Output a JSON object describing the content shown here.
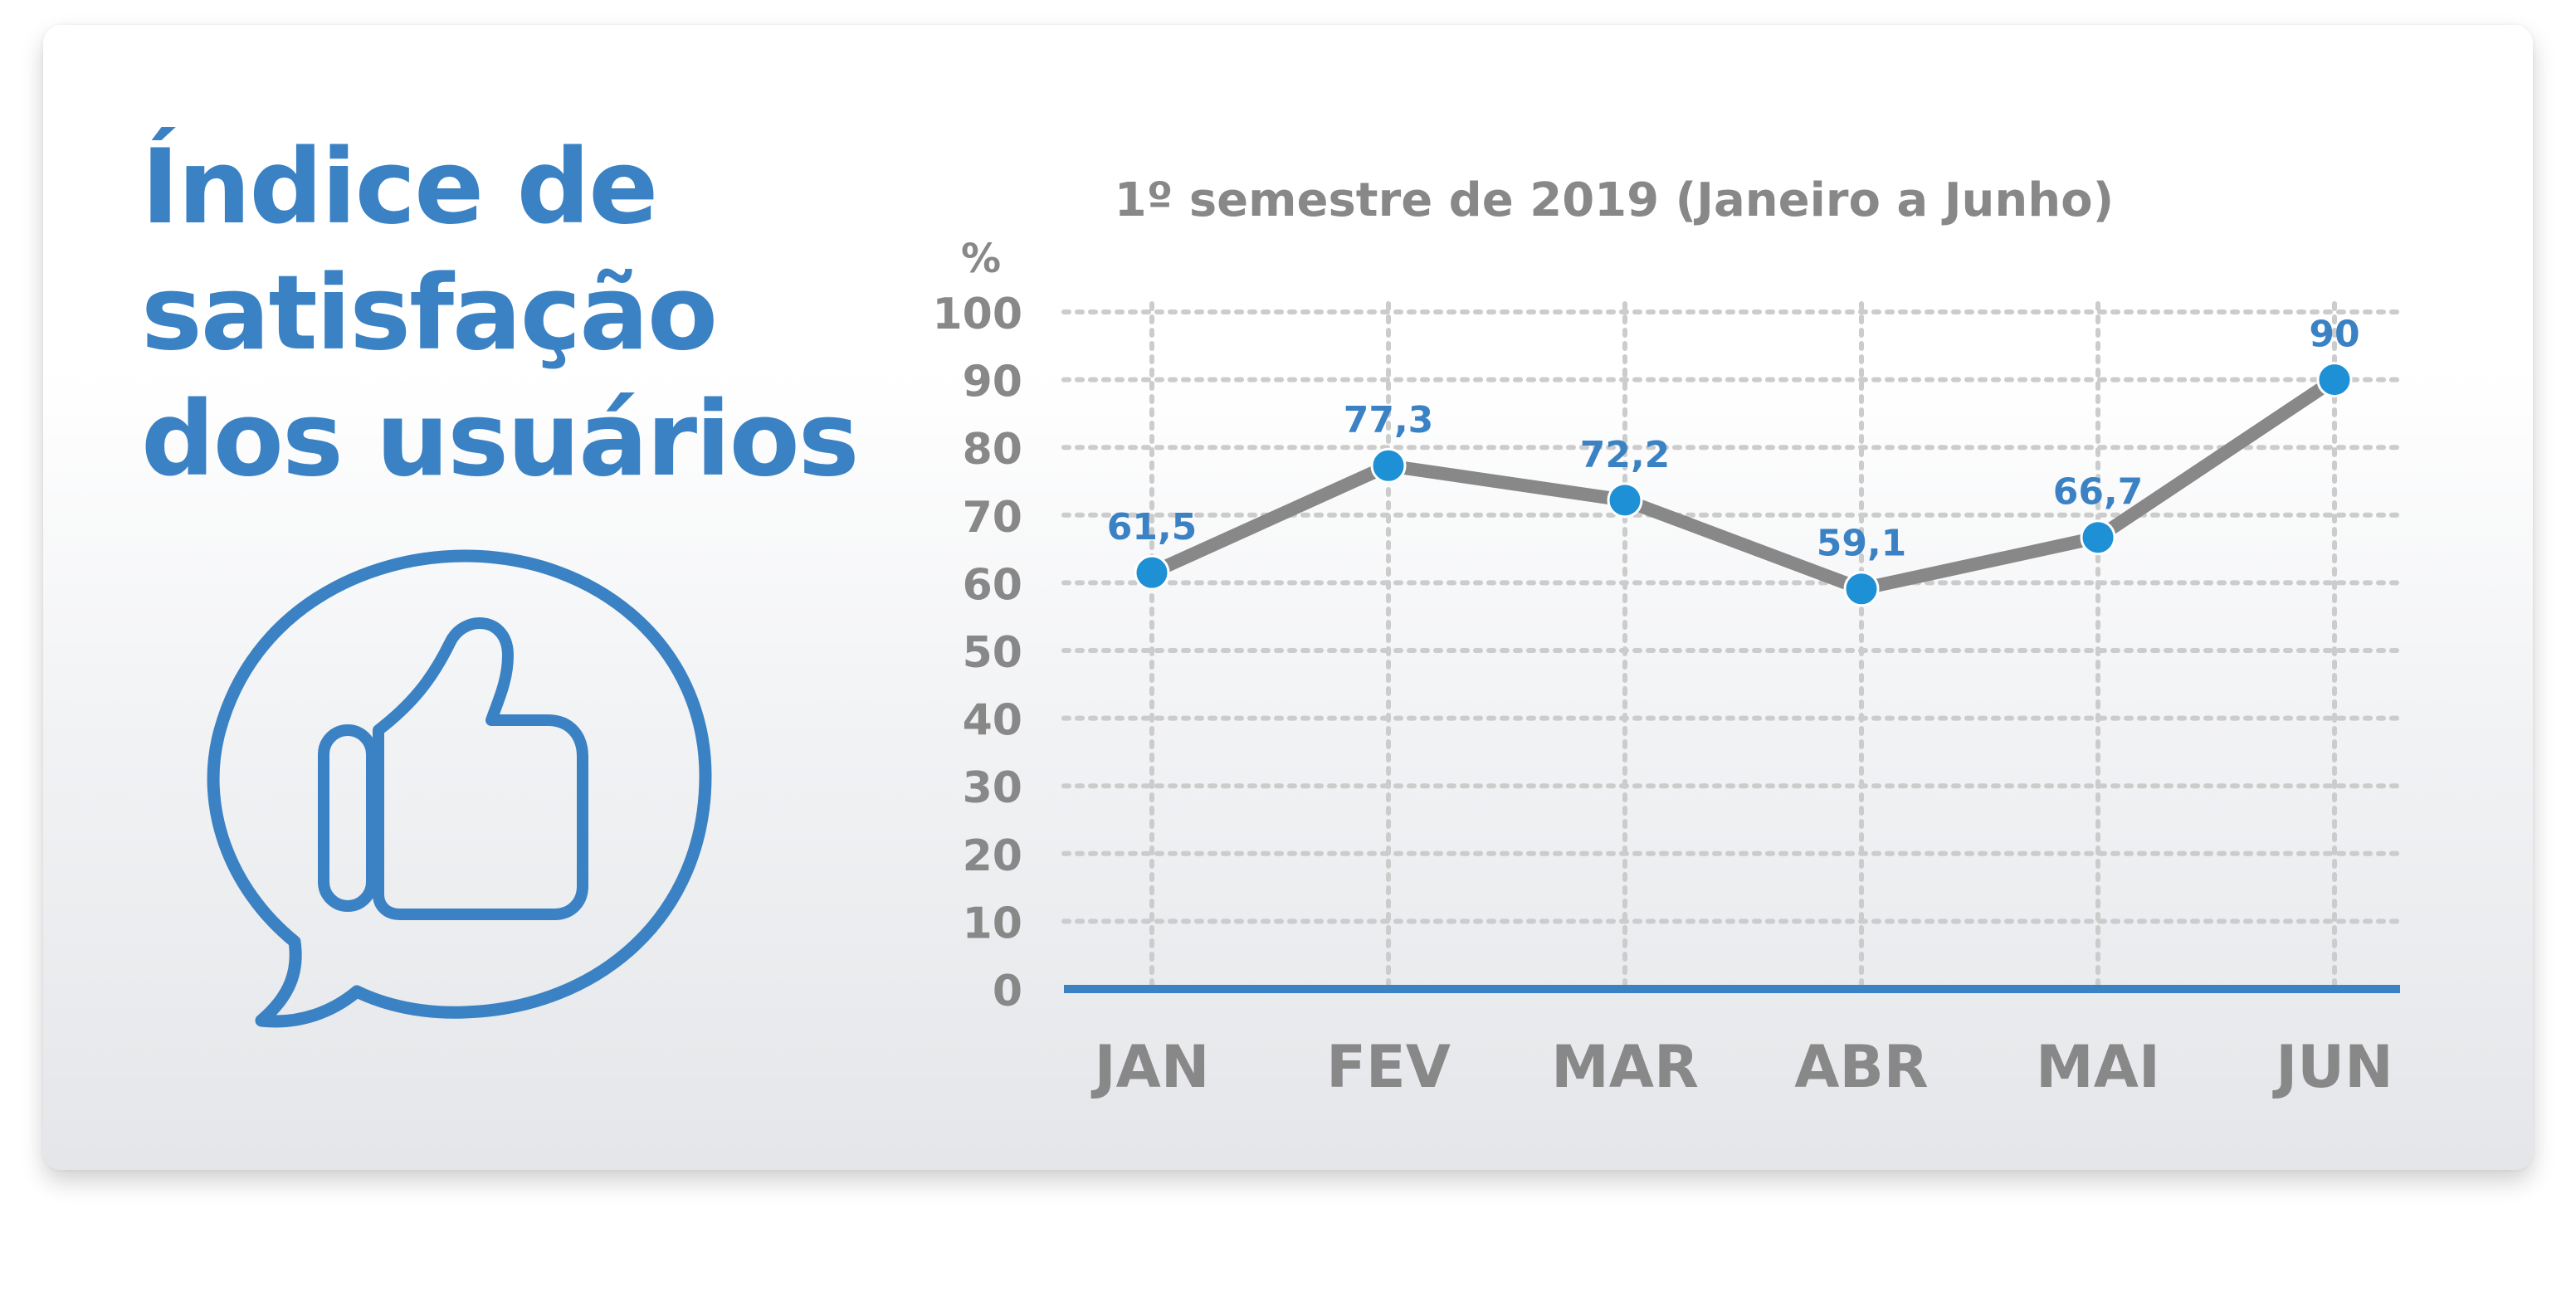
{
  "title": {
    "lines": [
      "Índice de",
      "satisfação",
      "dos usuários"
    ]
  },
  "icon": "thumbs-up-speech-bubble-icon",
  "colors": {
    "accent": "#3b82c4",
    "point": "#1e90d6",
    "line": "#888888",
    "axis_text": "#888888",
    "grid": "#cccccc"
  },
  "chart_data": {
    "type": "line",
    "title": "1º semestre de 2019 (Janeiro a Junho)",
    "ylabel": "%",
    "xlabel": "",
    "categories": [
      "JAN",
      "FEV",
      "MAR",
      "ABR",
      "MAI",
      "JUN"
    ],
    "values": [
      61.5,
      77.3,
      72.2,
      59.1,
      66.7,
      90
    ],
    "value_labels": [
      "61,5",
      "77,3",
      "72,2",
      "59,1",
      "66,7",
      "90"
    ],
    "yticks": [
      "0",
      "10",
      "20",
      "30",
      "40",
      "50",
      "60",
      "70",
      "80",
      "90",
      "100"
    ],
    "ylim": [
      0,
      100
    ],
    "grid": true,
    "legend": "none"
  }
}
